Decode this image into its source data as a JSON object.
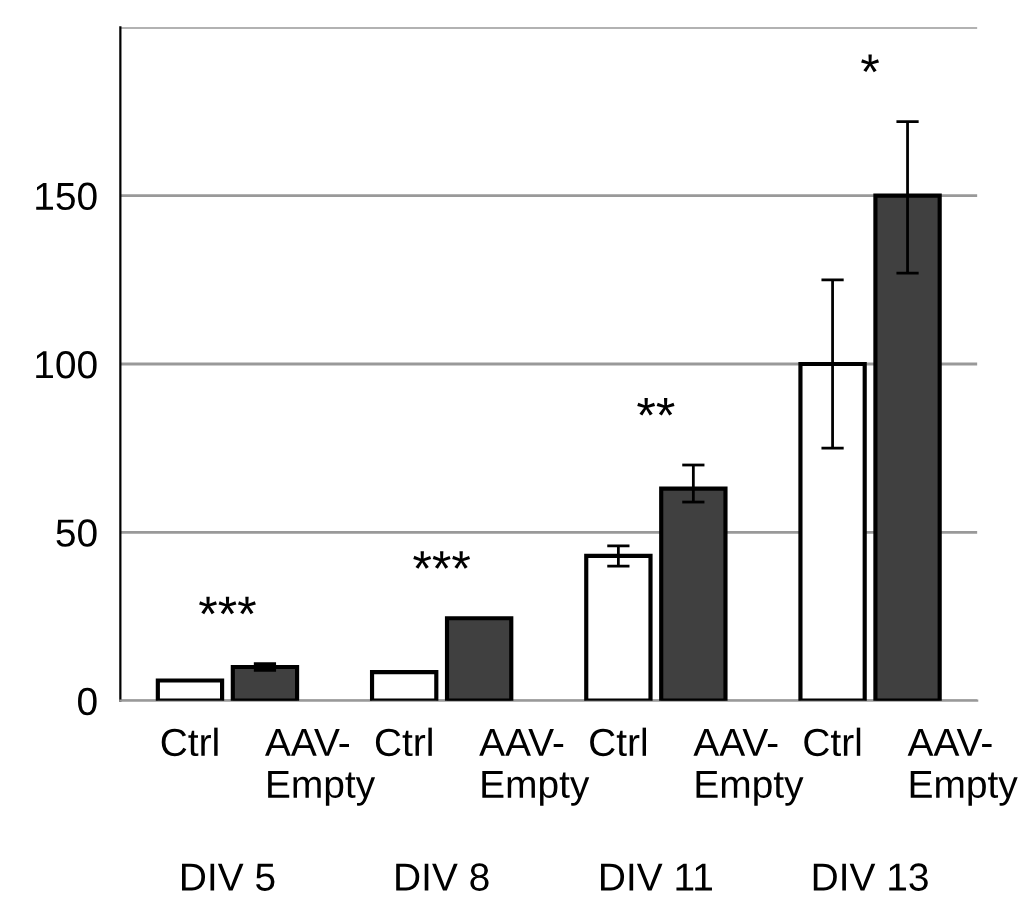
{
  "chart_data": {
    "type": "bar",
    "categories": [
      "DIV 5",
      "DIV 8",
      "DIV 11",
      "DIV 13"
    ],
    "series": [
      {
        "name": "Ctrl",
        "color": "#ffffff",
        "values": [
          6,
          8.5,
          43,
          100
        ],
        "errors": [
          null,
          null,
          [
            40,
            46
          ],
          [
            75,
            125
          ]
        ]
      },
      {
        "name": "AAV-Empty",
        "color": "#404040",
        "values": [
          10,
          24.5,
          63,
          150
        ],
        "errors": [
          [
            9,
            11
          ],
          null,
          [
            59,
            70
          ],
          [
            127,
            172
          ]
        ]
      }
    ],
    "ylim": [
      0,
      200
    ],
    "yticks": [
      0,
      50,
      100,
      150,
      {
        "value": 200,
        "label": null
      }
    ],
    "grid": "y",
    "annotations": [
      "***",
      "***",
      "**",
      "*"
    ]
  }
}
